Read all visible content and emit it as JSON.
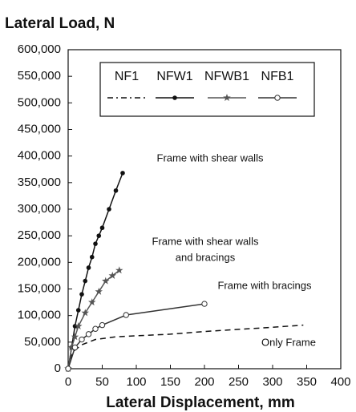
{
  "chart_data": {
    "type": "line",
    "title": "Lateral Load, N",
    "x_label": "Lateral Displacement, mm",
    "xlim": [
      0,
      400
    ],
    "xticks": [
      0,
      50,
      100,
      150,
      200,
      250,
      300,
      350,
      400
    ],
    "ylim": [
      0,
      600000
    ],
    "yticks": [
      0,
      {
        "value": 50000,
        "label": "50,000"
      },
      {
        "value": 100000,
        "label": "100,000"
      },
      {
        "value": 150000,
        "label": "150,000"
      },
      {
        "value": 200000,
        "label": "200,000"
      },
      {
        "value": 250000,
        "label": "250,000"
      },
      {
        "value": 300000,
        "label": "300,000"
      },
      {
        "value": 350000,
        "label": "350,000"
      },
      {
        "value": 400000,
        "label": "400,000"
      },
      {
        "value": 450000,
        "label": "450,000"
      },
      {
        "value": 500000,
        "label": "500,000"
      },
      {
        "value": 550000,
        "label": "550,000"
      },
      {
        "value": 600000,
        "label": "600,000"
      }
    ],
    "annotations": [
      "Frame with shear walls",
      "Frame with shear walls",
      "and bracings",
      "Frame with bracings",
      "Only Frame"
    ],
    "series": [
      {
        "name": "NF1",
        "color": "#111111",
        "marker": "none",
        "dashed": true,
        "x": [
          0,
          5,
          10,
          20,
          40,
          70,
          100,
          150,
          200,
          250,
          300,
          345
        ],
        "values": [
          0,
          25000,
          35000,
          45000,
          55000,
          60000,
          62000,
          65000,
          70000,
          74000,
          78000,
          82000
        ]
      },
      {
        "name": "NFW1",
        "color": "#111111",
        "marker": "dot",
        "dashed": false,
        "x": [
          0,
          5,
          10,
          15,
          20,
          25,
          30,
          35,
          40,
          45,
          50,
          60,
          70,
          80
        ],
        "values": [
          0,
          40000,
          80000,
          110000,
          140000,
          165000,
          190000,
          210000,
          235000,
          250000,
          265000,
          300000,
          335000,
          368000
        ]
      },
      {
        "name": "NFWB1",
        "color": "#555555",
        "marker": "star",
        "dashed": false,
        "x": [
          0,
          5,
          10,
          15,
          25,
          35,
          45,
          55,
          65,
          75
        ],
        "values": [
          0,
          40000,
          60000,
          80000,
          105000,
          125000,
          145000,
          165000,
          175000,
          185000
        ]
      },
      {
        "name": "NFB1",
        "color": "#333333",
        "marker": "open",
        "dashed": false,
        "x": [
          0,
          10,
          20,
          30,
          40,
          50,
          85,
          200
        ],
        "values": [
          0,
          40000,
          55000,
          65000,
          75000,
          82000,
          101000,
          122000
        ]
      }
    ]
  }
}
